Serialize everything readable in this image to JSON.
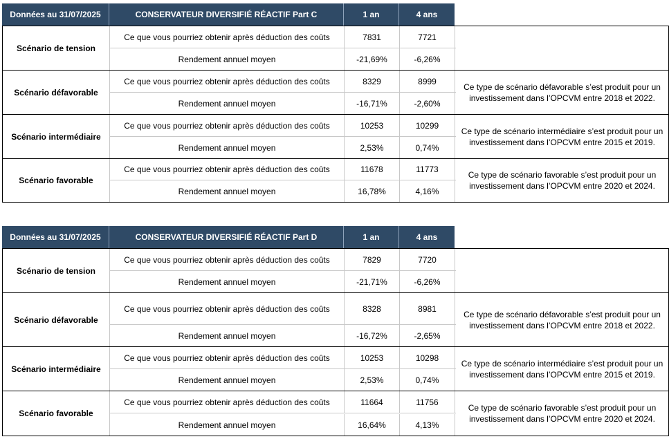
{
  "tables": [
    {
      "header": {
        "date": "Données au 31/07/2025",
        "fund": "CONSERVATEUR DIVERSIFIÉ RÉACTIF Part C",
        "col1": "1 an",
        "col2": "4 ans"
      },
      "scenarios": [
        {
          "label": "Scénario de tension",
          "row1": {
            "desc": "Ce que vous pourriez obtenir après déduction des coûts",
            "v1": "7831",
            "v2": "7721"
          },
          "row2": {
            "desc": "Rendement annuel moyen",
            "v1": "-21,69%",
            "v2": "-6,26%"
          },
          "note_line1": "",
          "note_line2": ""
        },
        {
          "label": "Scénario défavorable",
          "row1": {
            "desc": "Ce que vous pourriez obtenir après déduction des coûts",
            "v1": "8329",
            "v2": "8999"
          },
          "row2": {
            "desc": "Rendement annuel moyen",
            "v1": "-16,71%",
            "v2": "-2,60%"
          },
          "note_line1": "Ce type de scénario défavorable s’est produit pour un",
          "note_line2": "investissement dans l’OPCVM entre 2018 et 2022."
        },
        {
          "label": "Scénario intermédiaire",
          "row1": {
            "desc": "Ce que vous pourriez obtenir après déduction des coûts",
            "v1": "10253",
            "v2": "10299"
          },
          "row2": {
            "desc": "Rendement annuel moyen",
            "v1": "2,53%",
            "v2": "0,74%"
          },
          "note_line1": "Ce type de scénario intermédiaire s’est produit pour un",
          "note_line2": "investissement dans l’OPCVM entre 2015 et 2019."
        },
        {
          "label": "Scénario favorable",
          "row1": {
            "desc": "Ce que vous pourriez obtenir après déduction des coûts",
            "v1": "11678",
            "v2": "11773"
          },
          "row2": {
            "desc": "Rendement annuel moyen",
            "v1": "16,78%",
            "v2": "4,16%"
          },
          "note_line1": "Ce type de scénario favorable s’est produit pour un",
          "note_line2": "investissement dans l’OPCVM entre 2020 et 2024."
        }
      ]
    },
    {
      "header": {
        "date": "Données au 31/07/2025",
        "fund": "CONSERVATEUR DIVERSIFIÉ RÉACTIF Part D",
        "col1": "1 an",
        "col2": "4 ans"
      },
      "scenarios": [
        {
          "label": "Scénario de tension",
          "row1": {
            "desc": "Ce que vous pourriez obtenir après déduction des coûts",
            "v1": "7829",
            "v2": "7720"
          },
          "row2": {
            "desc": "Rendement annuel moyen",
            "v1": "-21,71%",
            "v2": "-6,26%"
          },
          "note_line1": "",
          "note_line2": ""
        },
        {
          "label": "Scénario défavorable",
          "row1": {
            "desc": "Ce que vous pourriez obtenir après déduction des coûts",
            "v1": "8328",
            "v2": "8981"
          },
          "row2": {
            "desc": "Rendement annuel moyen",
            "v1": "-16,72%",
            "v2": "-2,65%"
          },
          "note_line1": "Ce type de scénario défavorable s’est produit pour un",
          "note_line2": "investissement dans l’OPCVM entre 2018 et 2022."
        },
        {
          "label": "Scénario intermédiaire",
          "row1": {
            "desc": "Ce que vous pourriez obtenir après déduction des coûts",
            "v1": "10253",
            "v2": "10298"
          },
          "row2": {
            "desc": "Rendement annuel moyen",
            "v1": "2,53%",
            "v2": "0,74%"
          },
          "note_line1": "Ce type de scénario intermédiaire s’est produit pour un",
          "note_line2": "investissement dans l’OPCVM entre 2015 et 2019."
        },
        {
          "label": "Scénario favorable",
          "row1": {
            "desc": "Ce que vous pourriez obtenir après déduction des coûts",
            "v1": "11664",
            "v2": "11756"
          },
          "row2": {
            "desc": "Rendement annuel moyen",
            "v1": "16,64%",
            "v2": "4,13%"
          },
          "note_line1": "Ce type de scénario favorable s’est produit pour un",
          "note_line2": "investissement dans l’OPCVM entre 2020 et 2024."
        }
      ]
    }
  ]
}
